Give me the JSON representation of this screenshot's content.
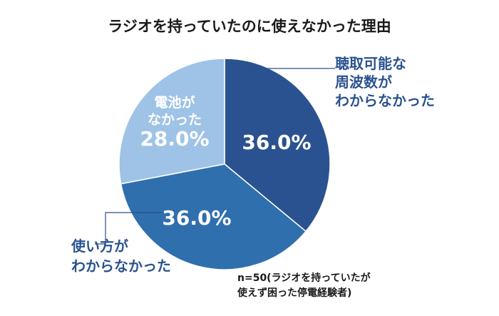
{
  "chart_data": {
    "type": "pie",
    "title": "ラジオを持っていたのに使えなかった理由",
    "slices": [
      {
        "label_lines": [
          "聴取可能な",
          "周波数が",
          "わからなかった"
        ],
        "value": 36.0,
        "value_label": "36.0%",
        "color": "#2b5290"
      },
      {
        "label_lines": [
          "使い方が",
          "わからなかった"
        ],
        "value": 36.0,
        "value_label": "36.0%",
        "color": "#2f6fad"
      },
      {
        "label_lines": [
          "電池が",
          "なかった"
        ],
        "value": 28.0,
        "value_label": "28.0%",
        "color": "#9ec3e6"
      }
    ],
    "note_lines": [
      "n=50(ラジオを持っていたが",
      "使えず困った停電経験者)"
    ],
    "label_text_color": "#2b5290"
  }
}
